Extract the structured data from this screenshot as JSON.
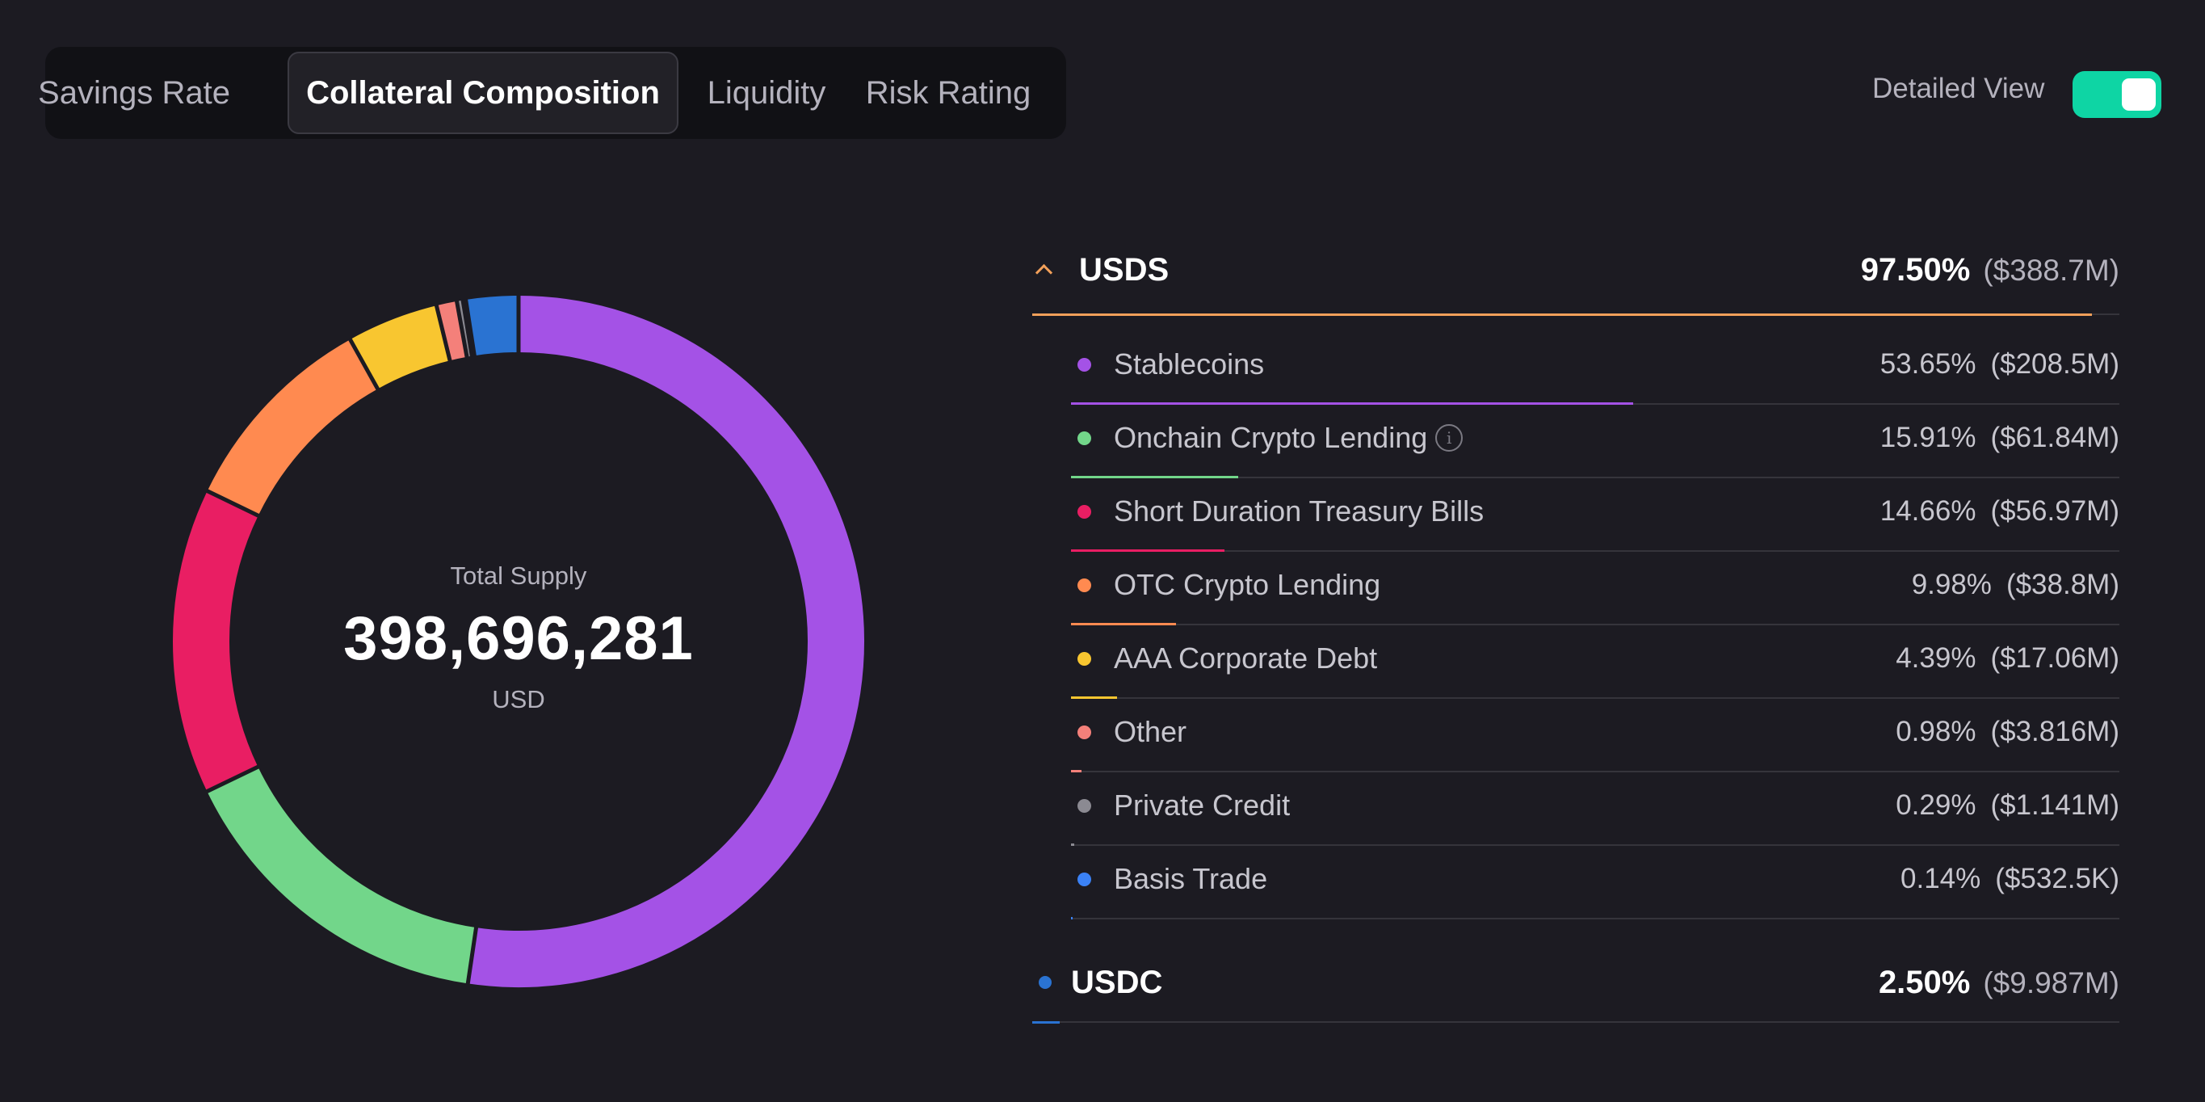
{
  "tabs": [
    {
      "label": "Savings Rate",
      "active": false
    },
    {
      "label": "Collateral Composition",
      "active": true
    },
    {
      "label": "Liquidity",
      "active": false
    },
    {
      "label": "Risk Rating",
      "active": false
    }
  ],
  "detailed_view": {
    "label": "Detailed View",
    "enabled": true,
    "color": "#0ed5a4"
  },
  "total_supply": {
    "label": "Total Supply",
    "value": "398,696,281",
    "unit": "USD"
  },
  "groups": [
    {
      "name": "USDS",
      "percent": "97.50%",
      "amount": "($388.7M)",
      "share": 0.975,
      "color": "#f2a05a",
      "expanded": true,
      "items": [
        {
          "label": "Stablecoins",
          "percent": "53.65%",
          "amount": "($208.5M)",
          "share": 0.5365,
          "color": "#a452e6",
          "info": false
        },
        {
          "label": "Onchain Crypto Lending",
          "percent": "15.91%",
          "amount": "($61.84M)",
          "share": 0.1591,
          "color": "#72d68a",
          "info": true
        },
        {
          "label": "Short Duration Treasury Bills",
          "percent": "14.66%",
          "amount": "($56.97M)",
          "share": 0.1466,
          "color": "#e91e63",
          "info": false
        },
        {
          "label": "OTC Crypto Lending",
          "percent": "9.98%",
          "amount": "($38.8M)",
          "share": 0.0998,
          "color": "#ff8a50",
          "info": false
        },
        {
          "label": "AAA Corporate Debt",
          "percent": "4.39%",
          "amount": "($17.06M)",
          "share": 0.0439,
          "color": "#f8c630",
          "info": false
        },
        {
          "label": "Other",
          "percent": "0.98%",
          "amount": "($3.816M)",
          "share": 0.0098,
          "color": "#f4807a",
          "info": false
        },
        {
          "label": "Private Credit",
          "percent": "0.29%",
          "amount": "($1.141M)",
          "share": 0.0029,
          "color": "#8b8a92",
          "info": false
        },
        {
          "label": "Basis Trade",
          "percent": "0.14%",
          "amount": "($532.5K)",
          "share": 0.0014,
          "color": "#3b82f6",
          "info": false
        }
      ]
    },
    {
      "name": "USDC",
      "percent": "2.50%",
      "amount": "($9.987M)",
      "share": 0.025,
      "color": "#2a73d2",
      "expanded": false,
      "items": []
    }
  ],
  "chart_data": {
    "type": "pie",
    "categories": [
      "Stablecoins",
      "Onchain Crypto Lending",
      "Short Duration Treasury Bills",
      "OTC Crypto Lending",
      "AAA Corporate Debt",
      "Other",
      "Private Credit",
      "Basis Trade",
      "USDC"
    ],
    "values": [
      53.65,
      15.91,
      14.66,
      9.98,
      4.39,
      0.98,
      0.29,
      0.14,
      2.5
    ],
    "colors": [
      "#a452e6",
      "#72d68a",
      "#e91e63",
      "#ff8a50",
      "#f8c630",
      "#f4807a",
      "#8b8a92",
      "#3b82f6",
      "#2a73d2"
    ],
    "title": "Total Supply",
    "center_value": "398,696,281",
    "center_unit": "USD",
    "donut": true
  }
}
